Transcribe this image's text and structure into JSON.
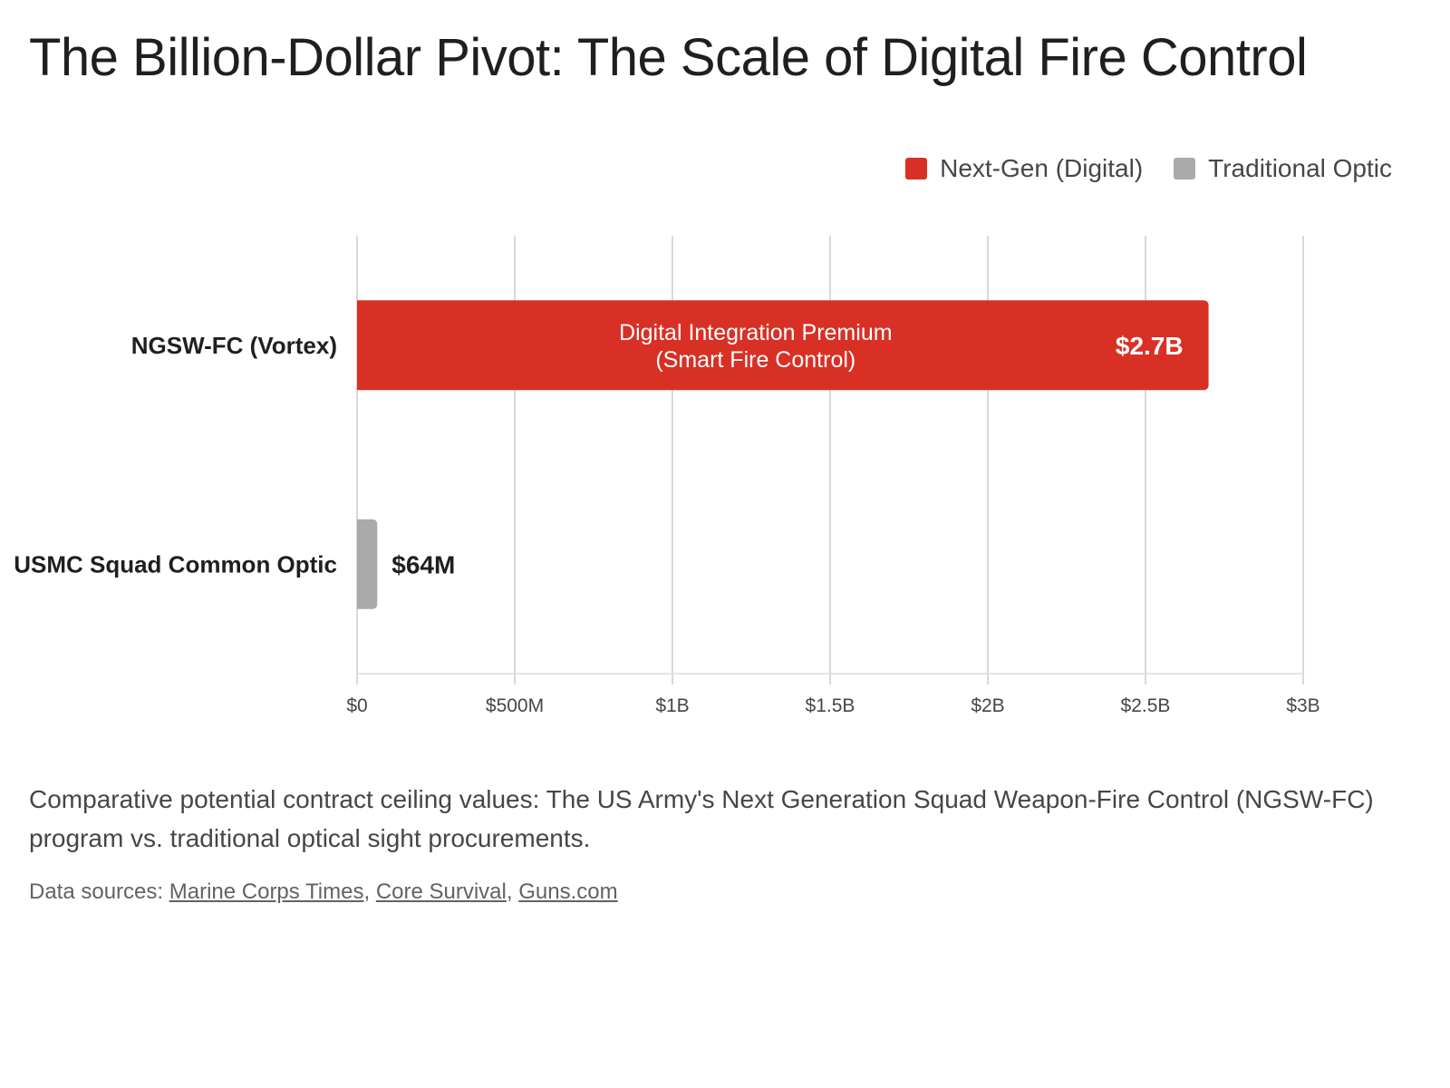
{
  "title": "The Billion-Dollar Pivot: The Scale of Digital Fire Control",
  "legend": [
    {
      "label": "Next-Gen (Digital)",
      "color": "#d93025"
    },
    {
      "label": "Traditional Optic",
      "color": "#aaaaaa"
    }
  ],
  "chart_data": {
    "type": "bar",
    "orientation": "horizontal",
    "title": "The Billion-Dollar Pivot: The Scale of Digital Fire Control",
    "categories": [
      "NGSW-FC (Vortex)",
      "USMC Squad Common Optic"
    ],
    "values": [
      2700000000,
      64000000
    ],
    "value_labels": [
      "$2.7B",
      "$64M"
    ],
    "bar_series": [
      "Next-Gen (Digital)",
      "Traditional Optic"
    ],
    "colors": [
      "#d93025",
      "#aaaaaa"
    ],
    "bar_inner_label": "Digital Integration Premium\n(Smart Fire Control)",
    "xlim": [
      0,
      3000000000
    ],
    "ticks": [
      0,
      500000000,
      1000000000,
      1500000000,
      2000000000,
      2500000000,
      3000000000
    ],
    "tick_labels": [
      "$0",
      "$500M",
      "$1B",
      "$1.5B",
      "$2B",
      "$2.5B",
      "$3B"
    ],
    "grid": true,
    "legend_position": "top-right"
  },
  "caption": "Comparative potential contract ceiling values: The US Army's Next Generation Squad Weapon-Fire Control (NGSW-FC) program vs. traditional optical sight procurements.",
  "sources": {
    "prefix": "Data sources: ",
    "links": [
      "Marine Corps Times",
      "Core Survival",
      "Guns.com"
    ],
    "separator": ", "
  }
}
